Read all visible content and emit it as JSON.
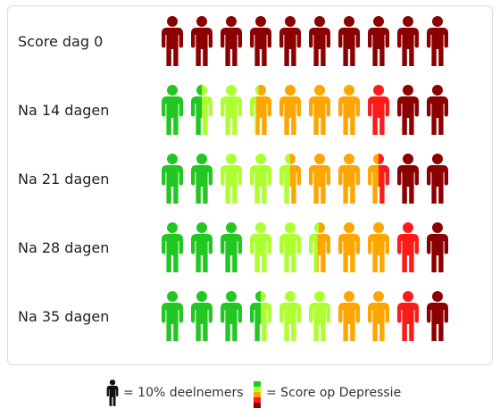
{
  "chart_data": {
    "type": "pictograph",
    "icons_per_row": 10,
    "rows": [
      {
        "label": "Score dag 0",
        "figures": [
          [
            [
              "#8b0000",
              1
            ]
          ],
          [
            [
              "#8b0000",
              1
            ]
          ],
          [
            [
              "#8b0000",
              1
            ]
          ],
          [
            [
              "#8b0000",
              1
            ]
          ],
          [
            [
              "#8b0000",
              1
            ]
          ],
          [
            [
              "#8b0000",
              1
            ]
          ],
          [
            [
              "#8b0000",
              1
            ]
          ],
          [
            [
              "#8b0000",
              1
            ]
          ],
          [
            [
              "#8b0000",
              1
            ]
          ],
          [
            [
              "#8b0000",
              1
            ]
          ]
        ]
      },
      {
        "label": "Na 14 dagen",
        "figures": [
          [
            [
              "#22c722",
              1
            ]
          ],
          [
            [
              "#22c722",
              0.5
            ],
            [
              "#adff2f",
              0.5
            ]
          ],
          [
            [
              "#adff2f",
              1
            ]
          ],
          [
            [
              "#adff2f",
              0.3
            ],
            [
              "#ffa500",
              0.7
            ]
          ],
          [
            [
              "#ffa500",
              1
            ]
          ],
          [
            [
              "#ffa500",
              1
            ]
          ],
          [
            [
              "#ffa500",
              1
            ]
          ],
          [
            [
              "#ff1a1a",
              1
            ]
          ],
          [
            [
              "#8b0000",
              1
            ]
          ],
          [
            [
              "#8b0000",
              1
            ]
          ]
        ]
      },
      {
        "label": "Na 21 dagen",
        "figures": [
          [
            [
              "#22c722",
              1
            ]
          ],
          [
            [
              "#22c722",
              1
            ]
          ],
          [
            [
              "#adff2f",
              1
            ]
          ],
          [
            [
              "#adff2f",
              1
            ]
          ],
          [
            [
              "#adff2f",
              0.5
            ],
            [
              "#ffa500",
              0.5
            ]
          ],
          [
            [
              "#ffa500",
              1
            ]
          ],
          [
            [
              "#ffa500",
              1
            ]
          ],
          [
            [
              "#ffa500",
              0.5
            ],
            [
              "#ff1a1a",
              0.5
            ]
          ],
          [
            [
              "#8b0000",
              1
            ]
          ],
          [
            [
              "#8b0000",
              1
            ]
          ]
        ]
      },
      {
        "label": "Na 28 dagen",
        "figures": [
          [
            [
              "#22c722",
              1
            ]
          ],
          [
            [
              "#22c722",
              1
            ]
          ],
          [
            [
              "#22c722",
              1
            ]
          ],
          [
            [
              "#adff2f",
              1
            ]
          ],
          [
            [
              "#adff2f",
              1
            ]
          ],
          [
            [
              "#adff2f",
              0.4
            ],
            [
              "#ffa500",
              0.6
            ]
          ],
          [
            [
              "#ffa500",
              1
            ]
          ],
          [
            [
              "#ffa500",
              1
            ]
          ],
          [
            [
              "#ff1a1a",
              1
            ]
          ],
          [
            [
              "#8b0000",
              1
            ]
          ]
        ]
      },
      {
        "label": "Na 35 dagen",
        "figures": [
          [
            [
              "#22c722",
              1
            ]
          ],
          [
            [
              "#22c722",
              1
            ]
          ],
          [
            [
              "#22c722",
              1
            ]
          ],
          [
            [
              "#22c722",
              0.5
            ],
            [
              "#adff2f",
              0.5
            ]
          ],
          [
            [
              "#adff2f",
              1
            ]
          ],
          [
            [
              "#adff2f",
              1
            ]
          ],
          [
            [
              "#ffa500",
              1
            ]
          ],
          [
            [
              "#ffa500",
              1
            ]
          ],
          [
            [
              "#ff1a1a",
              1
            ]
          ],
          [
            [
              "#8b0000",
              1
            ]
          ]
        ]
      }
    ]
  },
  "legend": {
    "person_text": "= 10% deelnemers",
    "scale_text": "= Score op Depressie",
    "person_color": "#111111",
    "scale_colors": [
      "#22c722",
      "#adff2f",
      "#ffa500",
      "#ff1a1a",
      "#8b0000"
    ]
  }
}
